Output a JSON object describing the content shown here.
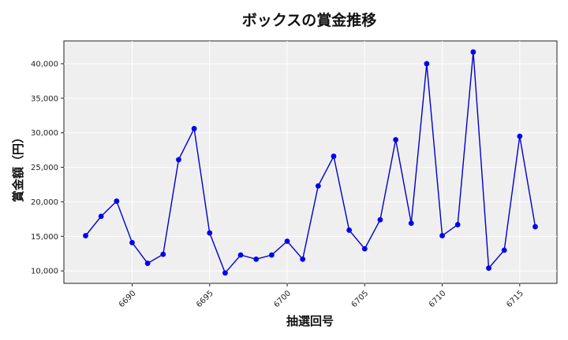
{
  "chart_data": {
    "type": "line",
    "title": "ボックスの賞金推移",
    "xlabel": "抽選回号",
    "ylabel": "賞金額（円）",
    "xlim": [
      6685.6,
      6717.4
    ],
    "ylim": [
      8200,
      43300
    ],
    "xticks": [
      6690,
      6695,
      6700,
      6705,
      6710,
      6715
    ],
    "yticks": [
      10000,
      15000,
      20000,
      25000,
      30000,
      35000,
      40000
    ],
    "ytick_labels": [
      "10,000",
      "15,000",
      "20,000",
      "25,000",
      "30,000",
      "35,000",
      "40,000"
    ],
    "grid": true,
    "line_color": "#0000cc",
    "marker_color": "#0000ee",
    "plot_background": "#efefef",
    "x": [
      6687,
      6688,
      6689,
      6690,
      6691,
      6692,
      6693,
      6694,
      6695,
      6696,
      6697,
      6698,
      6699,
      6700,
      6701,
      6702,
      6703,
      6704,
      6705,
      6706,
      6707,
      6708,
      6709,
      6710,
      6711,
      6712,
      6713,
      6714,
      6715,
      6716
    ],
    "y": [
      15100,
      17900,
      20100,
      14100,
      11100,
      12400,
      26100,
      30600,
      15500,
      9700,
      12300,
      11700,
      12300,
      14300,
      11700,
      22300,
      26600,
      15900,
      13200,
      17400,
      29000,
      16900,
      40000,
      15100,
      16700,
      41700,
      10400,
      13000,
      29500,
      16400
    ]
  }
}
